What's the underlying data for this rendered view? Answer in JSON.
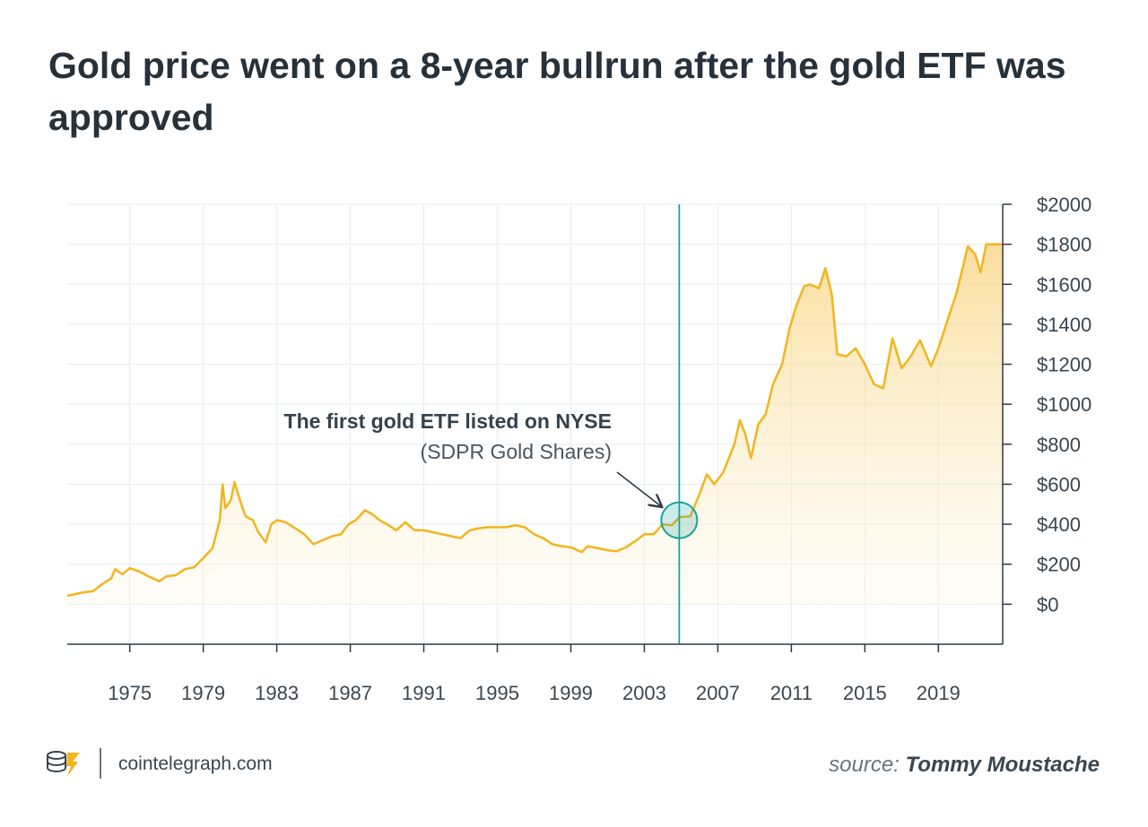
{
  "chart_data": {
    "type": "area-line",
    "title": "Gold price went on a 8-year bullrun after the gold ETF was approved",
    "x": [
      1971.6,
      1972.5,
      1973.0,
      1973.5,
      1974.0,
      1974.2,
      1974.6,
      1975.0,
      1975.5,
      1976.0,
      1976.6,
      1977.0,
      1977.5,
      1978.0,
      1978.5,
      1979.0,
      1979.5,
      1979.9,
      1980.05,
      1980.2,
      1980.5,
      1980.7,
      1981.0,
      1981.3,
      1981.7,
      1982.0,
      1982.4,
      1982.7,
      1983.0,
      1983.5,
      1984.0,
      1984.5,
      1985.0,
      1985.5,
      1986.0,
      1986.5,
      1986.9,
      1987.3,
      1987.8,
      1988.2,
      1988.6,
      1989.0,
      1989.5,
      1990.0,
      1990.5,
      1991.0,
      1991.5,
      1992.0,
      1992.5,
      1993.0,
      1993.5,
      1994.0,
      1994.5,
      1995.0,
      1995.5,
      1996.0,
      1996.5,
      1997.0,
      1997.5,
      1998.0,
      1998.5,
      1999.0,
      1999.6,
      1999.9,
      2000.5,
      2001.0,
      2001.5,
      2002.0,
      2002.5,
      2003.0,
      2003.5,
      2004.0,
      2004.5,
      2004.9,
      2005.5,
      2006.0,
      2006.4,
      2006.8,
      2007.3,
      2007.9,
      2008.2,
      2008.5,
      2008.8,
      2009.2,
      2009.6,
      2010.0,
      2010.5,
      2010.9,
      2011.3,
      2011.7,
      2012.0,
      2012.5,
      2012.85,
      2013.2,
      2013.5,
      2014.0,
      2014.5,
      2015.0,
      2015.5,
      2016.0,
      2016.5,
      2017.0,
      2017.5,
      2018.0,
      2018.6,
      2019.0,
      2019.5,
      2020.0,
      2020.6,
      2021.0,
      2021.3,
      2021.6,
      2022.5
    ],
    "values": [
      42,
      60,
      65,
      100,
      130,
      175,
      150,
      180,
      165,
      140,
      115,
      140,
      145,
      175,
      185,
      230,
      280,
      420,
      600,
      480,
      520,
      610,
      520,
      440,
      420,
      360,
      310,
      400,
      420,
      410,
      380,
      350,
      300,
      320,
      340,
      350,
      400,
      420,
      470,
      450,
      420,
      400,
      370,
      410,
      370,
      370,
      360,
      350,
      340,
      330,
      370,
      380,
      385,
      385,
      385,
      395,
      385,
      350,
      330,
      300,
      290,
      285,
      260,
      290,
      280,
      270,
      265,
      285,
      315,
      350,
      350,
      400,
      395,
      435,
      440,
      550,
      650,
      600,
      660,
      800,
      920,
      850,
      730,
      900,
      950,
      1100,
      1200,
      1380,
      1500,
      1590,
      1600,
      1580,
      1680,
      1550,
      1250,
      1240,
      1280,
      1200,
      1100,
      1080,
      1330,
      1180,
      1240,
      1320,
      1190,
      1280,
      1420,
      1560,
      1790,
      1750,
      1660,
      1800,
      1800
    ],
    "color": "#f2b51f",
    "xlim": [
      1971.6,
      2022.5
    ],
    "xticks": [
      1975,
      1979,
      1983,
      1987,
      1991,
      1995,
      1999,
      2003,
      2007,
      2011,
      2015,
      2019
    ],
    "ylim": [
      -200,
      2000
    ],
    "yticks": [
      {
        "value": 0,
        "label": "$0"
      },
      {
        "value": 200,
        "label": "$200"
      },
      {
        "value": 400,
        "label": "$400"
      },
      {
        "value": 600,
        "label": "$600"
      },
      {
        "value": 800,
        "label": "$800"
      },
      {
        "value": 1000,
        "label": "$1000"
      },
      {
        "value": 1200,
        "label": "$1200"
      },
      {
        "value": 1400,
        "label": "$1400"
      },
      {
        "value": 1600,
        "label": "$1600"
      },
      {
        "value": 1800,
        "label": "$1800"
      },
      {
        "value": 2000,
        "label": "$2000"
      }
    ],
    "grid": true,
    "annotation": {
      "text": "The first gold ETF listed on NYSE",
      "subtext": "(SDPR Gold Shares)",
      "x": 2004.9,
      "y": 420,
      "color": "#1aa39c"
    },
    "footer": {
      "site": "cointelegraph.com",
      "source_label": "source:",
      "source": "Tommy Moustache"
    }
  }
}
